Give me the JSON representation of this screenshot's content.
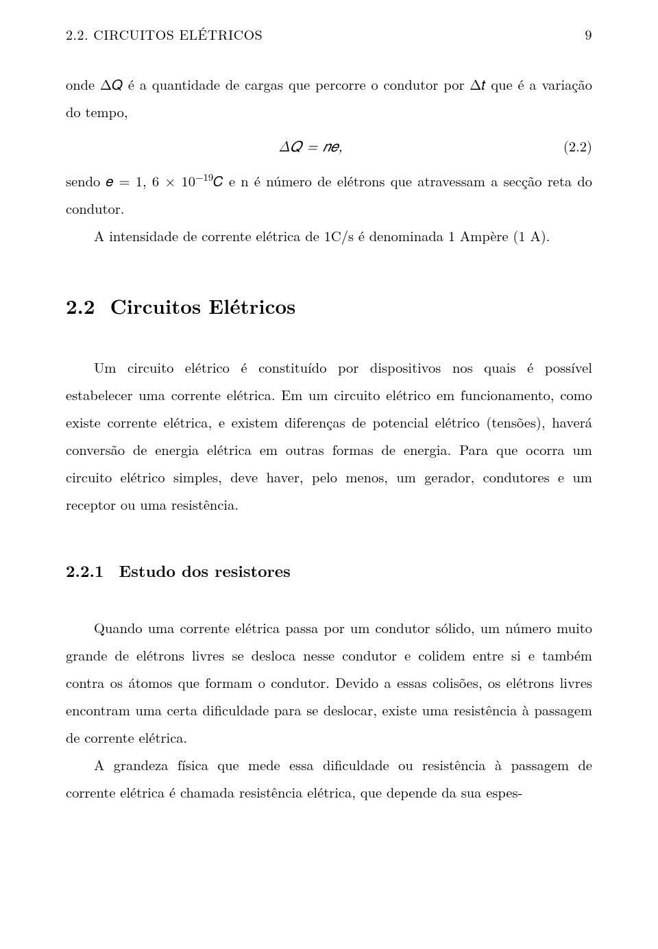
{
  "page": {
    "running_head_left": "2.2.  CIRCUITOS ELÉTRICOS",
    "page_number": "9"
  },
  "body": {
    "p1": "onde Δ𝑄 é a quantidade de cargas que percorre o condutor por Δ𝑡 que é a variação do tempo,",
    "eq1_expr": "Δ𝑄 = 𝑛𝑒,",
    "eq1_num": "(2.2)",
    "p2_a": "sendo 𝑒 = 1, 6 × 10",
    "p2_sup": "−19",
    "p2_b": "𝐶 e n é número de elétrons que atravessam a secção reta do condutor.",
    "p3": "A intensidade de corrente elétrica de 1C/s é denominada 1 Ampère (1 A).",
    "sec22_num": "2.2",
    "sec22_title": "Circuitos Elétricos",
    "p4": "Um circuito elétrico é constituído por dispositivos nos quais é possível estabelecer uma corrente elétrica.  Em um circuito elétrico em funcionamento, como existe corrente elétrica, e existem diferenças de potencial elétrico (tensões), haverá conversão de energia elétrica em outras formas de energia. Para que ocorra um circuito elétrico simples, deve haver, pelo menos, um gerador, condutores e um receptor ou uma resistência.",
    "sec221_num": "2.2.1",
    "sec221_title": "Estudo dos resistores",
    "p5": "Quando uma corrente elétrica passa por um condutor sólido, um número muito grande de elétrons livres se desloca nesse condutor e colidem entre si e também contra os átomos que formam o condutor. Devido a essas colisões, os elétrons livres encontram uma certa dificuldade para se deslocar, existe uma resistência à passagem de corrente elétrica.",
    "p6": "A grandeza física que mede essa dificuldade ou resistência à passagem de corrente elétrica é chamada resistência elétrica, que depende da sua espes-"
  },
  "style": {
    "background_color": "#ffffff",
    "text_color": "#000000",
    "body_fontsize": 20.5,
    "section_fontsize": 29,
    "subsection_fontsize": 23.5,
    "line_height": 1.95
  }
}
